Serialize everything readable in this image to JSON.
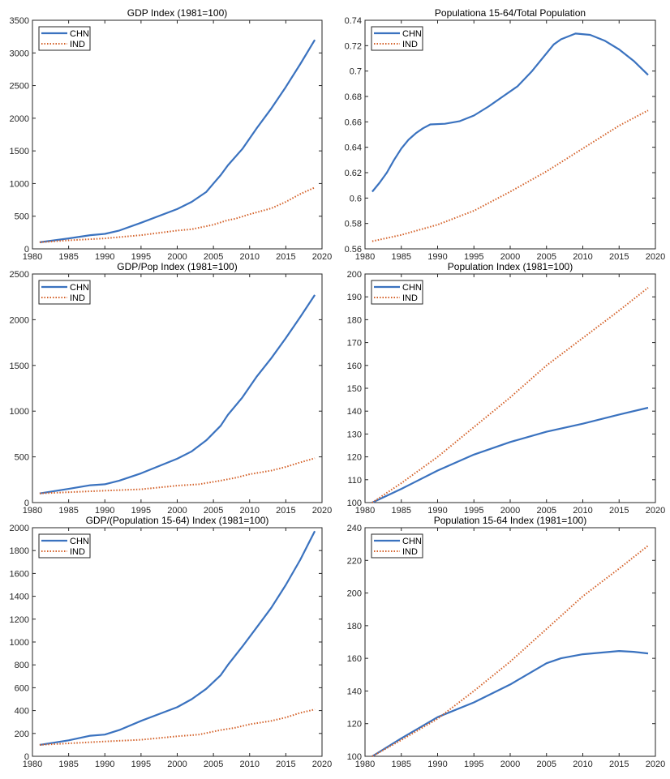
{
  "chart_data": [
    {
      "type": "line",
      "title": "GDP Index  (1981=100)",
      "xlim": [
        1980,
        2020
      ],
      "ylim": [
        0,
        3500
      ],
      "ystep": 500,
      "xticks": [
        1980,
        1985,
        1990,
        1995,
        2000,
        2005,
        2010,
        2015,
        2020
      ],
      "legend": "top-left",
      "series": [
        {
          "name": "CHN",
          "color": "#3a72bf",
          "style": "solid",
          "x": [
            1981,
            1985,
            1988,
            1990,
            1992,
            1995,
            2000,
            2002,
            2004,
            2005,
            2006,
            2007,
            2009,
            2011,
            2013,
            2015,
            2017,
            2019
          ],
          "y": [
            100,
            160,
            210,
            230,
            280,
            400,
            610,
            720,
            870,
            1000,
            1130,
            1280,
            1530,
            1850,
            2150,
            2480,
            2830,
            3200
          ]
        },
        {
          "name": "IND",
          "color": "#d4622a",
          "style": "dotted",
          "x": [
            1981,
            1985,
            1990,
            1995,
            2000,
            2002,
            2005,
            2007,
            2008,
            2010,
            2013,
            2015,
            2017,
            2019
          ],
          "y": [
            100,
            130,
            160,
            210,
            280,
            300,
            370,
            440,
            460,
            530,
            620,
            720,
            840,
            940
          ]
        }
      ]
    },
    {
      "type": "line",
      "title": "Populationa 15-64/Total Population",
      "xlim": [
        1980,
        2020
      ],
      "ylim": [
        0.56,
        0.74
      ],
      "ystep": 0.02,
      "xticks": [
        1980,
        1985,
        1990,
        1995,
        2000,
        2005,
        2010,
        2015,
        2020
      ],
      "legend": "top-left",
      "series": [
        {
          "name": "CHN",
          "color": "#3a72bf",
          "style": "solid",
          "x": [
            1981,
            1982,
            1983,
            1984,
            1985,
            1986,
            1987,
            1988,
            1989,
            1991,
            1993,
            1995,
            1997,
            1999,
            2001,
            2003,
            2005,
            2006,
            2007,
            2009,
            2011,
            2013,
            2015,
            2017,
            2019
          ],
          "y": [
            0.605,
            0.612,
            0.62,
            0.63,
            0.639,
            0.646,
            0.651,
            0.655,
            0.658,
            0.6585,
            0.6605,
            0.665,
            0.672,
            0.68,
            0.688,
            0.7,
            0.714,
            0.721,
            0.725,
            0.7295,
            0.7285,
            0.724,
            0.717,
            0.708,
            0.697
          ]
        },
        {
          "name": "IND",
          "color": "#d4622a",
          "style": "dotted",
          "x": [
            1981,
            1985,
            1990,
            1995,
            2000,
            2005,
            2010,
            2015,
            2019
          ],
          "y": [
            0.566,
            0.571,
            0.579,
            0.59,
            0.605,
            0.621,
            0.639,
            0.657,
            0.669
          ]
        }
      ]
    },
    {
      "type": "line",
      "title": "GDP/Pop Index  (1981=100)",
      "xlim": [
        1980,
        2020
      ],
      "ylim": [
        0,
        2500
      ],
      "ystep": 500,
      "xticks": [
        1980,
        1985,
        1990,
        1995,
        2000,
        2005,
        2010,
        2015,
        2020
      ],
      "legend": "top-left",
      "series": [
        {
          "name": "CHN",
          "color": "#3a72bf",
          "style": "solid",
          "x": [
            1981,
            1985,
            1988,
            1990,
            1992,
            1995,
            2000,
            2002,
            2004,
            2006,
            2007,
            2009,
            2011,
            2013,
            2015,
            2017,
            2019
          ],
          "y": [
            100,
            150,
            190,
            200,
            240,
            320,
            480,
            560,
            680,
            840,
            960,
            1150,
            1380,
            1580,
            1800,
            2030,
            2270
          ]
        },
        {
          "name": "IND",
          "color": "#d4622a",
          "style": "dotted",
          "x": [
            1981,
            1990,
            1995,
            2000,
            2003,
            2006,
            2008,
            2010,
            2013,
            2015,
            2017,
            2019
          ],
          "y": [
            100,
            130,
            145,
            185,
            200,
            240,
            270,
            310,
            350,
            390,
            440,
            485
          ]
        }
      ]
    },
    {
      "type": "line",
      "title": "Population Index  (1981=100)",
      "xlim": [
        1980,
        2020
      ],
      "ylim": [
        100,
        200
      ],
      "ystep": 10,
      "xticks": [
        1980,
        1985,
        1990,
        1995,
        2000,
        2005,
        2010,
        2015,
        2020
      ],
      "legend": "top-left",
      "series": [
        {
          "name": "CHN",
          "color": "#3a72bf",
          "style": "solid",
          "x": [
            1981,
            1985,
            1990,
            1995,
            2000,
            2005,
            2010,
            2015,
            2019
          ],
          "y": [
            100,
            106,
            114,
            121,
            126.5,
            131,
            134.5,
            138.5,
            141.5
          ]
        },
        {
          "name": "IND",
          "color": "#d4622a",
          "style": "dotted",
          "x": [
            1981,
            1985,
            1990,
            1995,
            2000,
            2005,
            2010,
            2015,
            2019
          ],
          "y": [
            100,
            108.5,
            120,
            133,
            146,
            160,
            172,
            184,
            194
          ]
        }
      ]
    },
    {
      "type": "line",
      "title": "GDP/(Population 15-64) Index  (1981=100)",
      "xlim": [
        1980,
        2020
      ],
      "ylim": [
        0,
        2000
      ],
      "ystep": 200,
      "xticks": [
        1980,
        1985,
        1990,
        1995,
        2000,
        2005,
        2010,
        2015,
        2020
      ],
      "legend": "top-left",
      "series": [
        {
          "name": "CHN",
          "color": "#3a72bf",
          "style": "solid",
          "x": [
            1981,
            1985,
            1988,
            1990,
            1992,
            1995,
            2000,
            2002,
            2004,
            2006,
            2007,
            2009,
            2011,
            2013,
            2015,
            2017,
            2019
          ],
          "y": [
            100,
            140,
            180,
            190,
            230,
            310,
            430,
            500,
            590,
            710,
            800,
            960,
            1130,
            1300,
            1500,
            1720,
            1970
          ]
        },
        {
          "name": "IND",
          "color": "#d4622a",
          "style": "dotted",
          "x": [
            1981,
            1990,
            1995,
            2000,
            2003,
            2006,
            2008,
            2010,
            2013,
            2015,
            2017,
            2019
          ],
          "y": [
            100,
            130,
            145,
            175,
            190,
            230,
            250,
            280,
            310,
            340,
            380,
            410
          ]
        }
      ]
    },
    {
      "type": "line",
      "title": "Population 15-64 Index  (1981=100)",
      "xlim": [
        1980,
        2020
      ],
      "ylim": [
        100,
        240
      ],
      "ystep": 20,
      "xticks": [
        1980,
        1985,
        1990,
        1995,
        2000,
        2005,
        2010,
        2015,
        2020
      ],
      "legend": "top-left",
      "series": [
        {
          "name": "CHN",
          "color": "#3a72bf",
          "style": "solid",
          "x": [
            1981,
            1985,
            1990,
            1995,
            2000,
            2005,
            2007,
            2010,
            2015,
            2017,
            2019
          ],
          "y": [
            100,
            111,
            124,
            133,
            144,
            157,
            160,
            162.5,
            164.5,
            164,
            163
          ]
        },
        {
          "name": "IND",
          "color": "#d4622a",
          "style": "dotted",
          "x": [
            1981,
            1985,
            1990,
            1995,
            2000,
            2005,
            2010,
            2015,
            2019
          ],
          "y": [
            100,
            110,
            123,
            140,
            158,
            178,
            198,
            215,
            229
          ]
        }
      ]
    }
  ]
}
